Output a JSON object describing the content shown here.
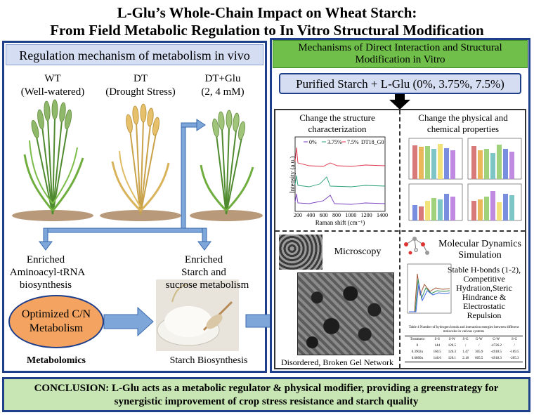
{
  "title_line1": "L-Glu’s Whole-Chain Impact on Wheat Starch:",
  "title_line2": "From Field Metabolic Regulation to In Vitro Structural Modification",
  "left_panel": {
    "header": "Regulation mechanism of metabolism in vivo",
    "groups": [
      {
        "name": "WT",
        "desc": "(Well-watered)"
      },
      {
        "name": "DT",
        "desc": "(Drought Stress)"
      },
      {
        "name": "DT+Glu",
        "desc": "(2, 4 mM)"
      }
    ],
    "enriched_left": [
      "Enriched",
      "Aminoacyl-tRNA",
      "biosynthesis"
    ],
    "enriched_right": [
      "Enriched",
      "Starch and",
      "sucrose metabolism"
    ],
    "oval_text": [
      "Optimized C/N",
      "Metabolism"
    ],
    "metabolomics": "Metabolomics",
    "starch_biosynthesis": "Starch Biosynthesis"
  },
  "right_panel": {
    "header": "Mechanisms of Direct Interaction and Structural Modification in Vitro",
    "purified": "Purified Starch + L-Glu (0%, 3.75%, 7.5%)",
    "q1_title": [
      "Change the structure",
      "characterization"
    ],
    "q2_title": [
      "Change the physical and",
      "chemical properties"
    ],
    "raman": {
      "legend": [
        "0%",
        "3.75%",
        "7.5%",
        "DT18_G0"
      ],
      "xlabel": "Raman shift (cm⁻¹)",
      "ylabel": "Intensity (a.u.)",
      "xticks": [
        "200",
        "400",
        "600",
        "800",
        "1000",
        "1200",
        "1400"
      ]
    },
    "microscopy": "Microscopy",
    "gel_caption": "Disordered, Broken Gel Network",
    "md_title": [
      "Molecular Dynamics",
      "Simulation"
    ],
    "md_text": [
      "Stable H-bonds (1-2),",
      "Competitive",
      "Hydration,Steric",
      "Hindrance &",
      "Electrostatic",
      "Repulsion"
    ],
    "md_table": {
      "caption": "Table 4 Number of hydrogen bonds and interaction energies between different molecules in various systems",
      "headers": [
        "Treatment",
        "S-S",
        "S-W",
        "S-G",
        "G-W",
        "G-W",
        "S-G"
      ],
      "rows": [
        [
          "0",
          "144",
          "120.5",
          "/",
          "/",
          "-4726.2",
          "/"
        ],
        [
          "0.3902u",
          "160.5",
          "126.3",
          "1.47",
          "305.9",
          "-4918.5",
          "-169.5"
        ],
        [
          "0.6860u",
          "146.6",
          "120.1",
          "2.18",
          "605.5",
          "-4918.3",
          "-205.3"
        ]
      ]
    }
  },
  "conclusion": [
    "CONCLUSION: L-Glu acts as a metabolic regulator & physical modifier, providing a greenstrategy for",
    "synergistic improvement of crop stress resistance and starch quality"
  ],
  "colors": {
    "panel_border": "#1f3f8a",
    "left_header_bg": "#d4ddf2",
    "right_header_bg": "#6fbf4a",
    "oval_fill": "#f4a460",
    "conclusion_bg": "#c8e6b4",
    "arrow_blue": "#7fa6d8"
  }
}
